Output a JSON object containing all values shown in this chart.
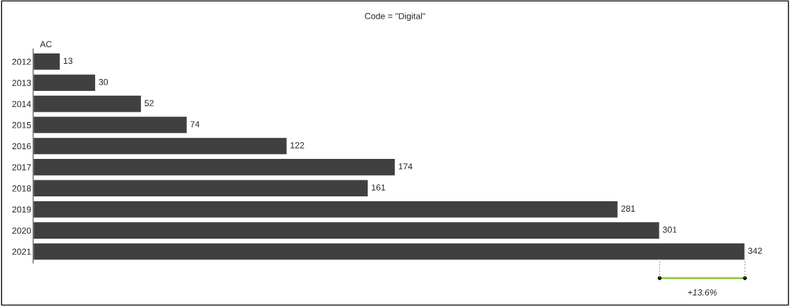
{
  "chart_data": {
    "type": "bar",
    "orientation": "horizontal",
    "title": "Code = \"Digital\"",
    "categories": [
      "2012",
      "2013",
      "2014",
      "2015",
      "2016",
      "2017",
      "2018",
      "2019",
      "2020",
      "2021"
    ],
    "series": [
      {
        "name": "AC",
        "color": "#404040",
        "values": [
          13,
          30,
          52,
          74,
          122,
          174,
          161,
          281,
          301,
          342
        ]
      }
    ],
    "data_labels": true,
    "grid": false,
    "legend": "top left",
    "annotations": [
      "+13.6%"
    ]
  }
}
